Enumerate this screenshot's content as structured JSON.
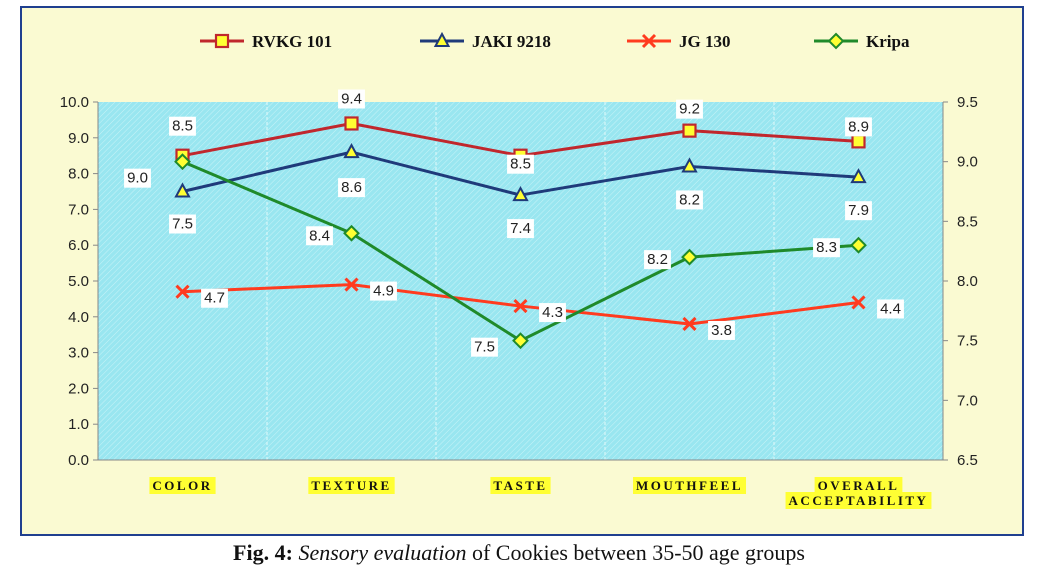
{
  "caption": {
    "fig": "Fig. 4:",
    "italic": "Sensory evaluation",
    "rest": " of Cookies between 35-50 age groups"
  },
  "colors": {
    "frame_bg": "#fafad2",
    "frame_border": "#1f3f8f",
    "plot_bg": "#99e6f0",
    "category_highlight": "#ffff33"
  },
  "chart_data": {
    "type": "line",
    "title": "",
    "categories": [
      "COLOR",
      "TEXTURE",
      "TASTE",
      "MOUTHFEEL",
      "OVERALL ACCEPTABILITY"
    ],
    "category_label_lines": [
      [
        "COLOR"
      ],
      [
        "TEXTURE"
      ],
      [
        "TASTE"
      ],
      [
        "MOUTHFEEL"
      ],
      [
        "OVERALL",
        "ACCEPTABILITY"
      ]
    ],
    "y_left": {
      "min": 0,
      "max": 10,
      "ticks": [
        "0.0",
        "1.0",
        "2.0",
        "3.0",
        "4.0",
        "5.0",
        "6.0",
        "7.0",
        "8.0",
        "9.0",
        "10.0"
      ]
    },
    "y_right": {
      "min": 6.5,
      "max": 9.5,
      "ticks": [
        "6.5",
        "7.0",
        "7.5",
        "8.0",
        "8.5",
        "9.0",
        "9.5"
      ]
    },
    "legend_position": "top",
    "grid": "vertical",
    "series": [
      {
        "name": "RVKG 101",
        "axis": "left",
        "color": "#c0272d",
        "marker": "square",
        "values": [
          8.5,
          9.4,
          8.5,
          9.2,
          8.9
        ],
        "labels": [
          "8.5",
          "9.4",
          "8.5",
          "9.2",
          "8.9"
        ]
      },
      {
        "name": "JAKI 9218",
        "axis": "left",
        "color": "#1f3a7a",
        "marker": "triangle",
        "values": [
          7.5,
          8.6,
          7.4,
          8.2,
          7.9
        ],
        "labels": [
          "7.5",
          "8.6",
          "7.4",
          "8.2",
          "7.9"
        ]
      },
      {
        "name": "JG 130",
        "axis": "left",
        "color": "#ff3b1f",
        "marker": "x",
        "values": [
          4.7,
          4.9,
          4.3,
          3.8,
          4.4
        ],
        "labels": [
          "4.7",
          "4.9",
          "4.3",
          "3.8",
          "4.4"
        ]
      },
      {
        "name": "Kripa",
        "axis": "right",
        "color": "#1f8a2a",
        "marker": "diamond",
        "values": [
          9.0,
          8.4,
          7.5,
          8.2,
          8.3
        ],
        "labels": [
          "9.0",
          "8.4",
          "7.5",
          "8.2",
          "8.3"
        ]
      }
    ]
  }
}
